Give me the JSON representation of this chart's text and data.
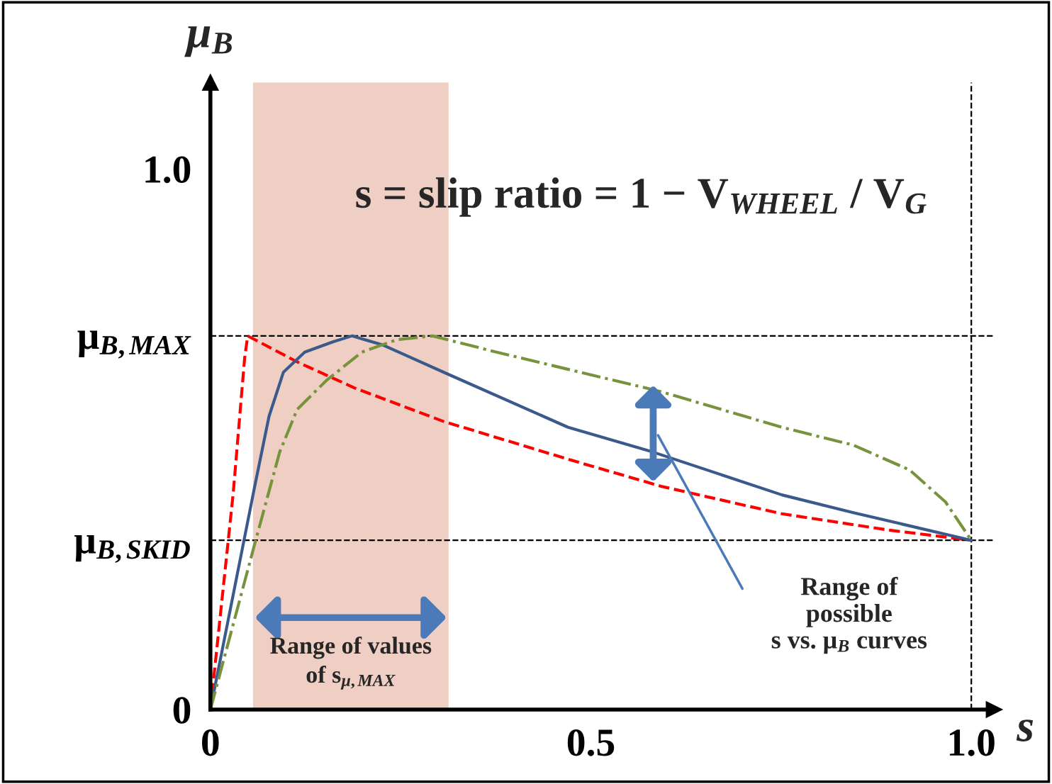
{
  "chart_data": {
    "type": "line",
    "title": "s = slip ratio = 1 − V$_{WHEEL}$ / V$_{G}$",
    "xlabel": "s",
    "ylabel": "μ$_{B}$",
    "xlim": [
      0,
      1.03
    ],
    "ylim": [
      0,
      1.16
    ],
    "xticks": [
      0,
      0.5,
      {
        "value": 1.0,
        "label": "1.0"
      }
    ],
    "yticks": [
      0,
      {
        "value": 0.313,
        "label": "μ$_{B,SKID}$"
      },
      {
        "value": 0.691,
        "label": "μ$_{B,MAX}$"
      },
      {
        "value": 1.0,
        "label": "1.0"
      }
    ],
    "grid": false,
    "series": [
      {
        "color": "#ff0000",
        "line_style": "dashed",
        "x": [
          0,
          0.03,
          0.045,
          0.049,
          0.114,
          0.189,
          0.306,
          0.47,
          0.592,
          0.751,
          0.891,
          1.0
        ],
        "values": [
          0,
          0.4,
          0.65,
          0.691,
          0.643,
          0.595,
          0.533,
          0.463,
          0.413,
          0.362,
          0.332,
          0.313
        ]
      },
      {
        "color": "#3a5a8c",
        "line_style": "solid",
        "x": [
          0,
          0.058,
          0.077,
          0.096,
          0.124,
          0.161,
          0.186,
          0.227,
          0.311,
          0.47,
          0.582,
          0.751,
          0.845,
          1.0
        ],
        "values": [
          0,
          0.411,
          0.542,
          0.624,
          0.661,
          0.68,
          0.691,
          0.674,
          0.621,
          0.522,
          0.476,
          0.397,
          0.364,
          0.313
        ]
      },
      {
        "color": "#77933c",
        "line_style": "dashdot",
        "x": [
          0,
          0.058,
          0.091,
          0.114,
          0.152,
          0.199,
          0.245,
          0.292,
          0.376,
          0.592,
          0.751,
          0.845,
          0.919,
          0.966,
          1.0
        ],
        "values": [
          0,
          0.305,
          0.476,
          0.555,
          0.608,
          0.661,
          0.684,
          0.691,
          0.661,
          0.588,
          0.522,
          0.489,
          0.443,
          0.384,
          0.313
        ]
      }
    ],
    "ref_lines": [
      {
        "axis": "y",
        "value": 0.691,
        "color": "#000000",
        "line_style": "dashed"
      },
      {
        "axis": "y",
        "value": 0.313,
        "color": "#000000",
        "line_style": "dashed"
      },
      {
        "axis": "x",
        "value": 1.0,
        "color": "#000000",
        "line_style": "dashed"
      }
    ],
    "bands": [
      {
        "axis": "x",
        "from": 0.056,
        "to": 0.313,
        "color": "#efcfc4",
        "label": "Range of values\nof s$_{μ,MAX}$"
      }
    ],
    "annotations": [
      "Range of\npossible\ns vs. μ$_{B}$ curves"
    ]
  }
}
